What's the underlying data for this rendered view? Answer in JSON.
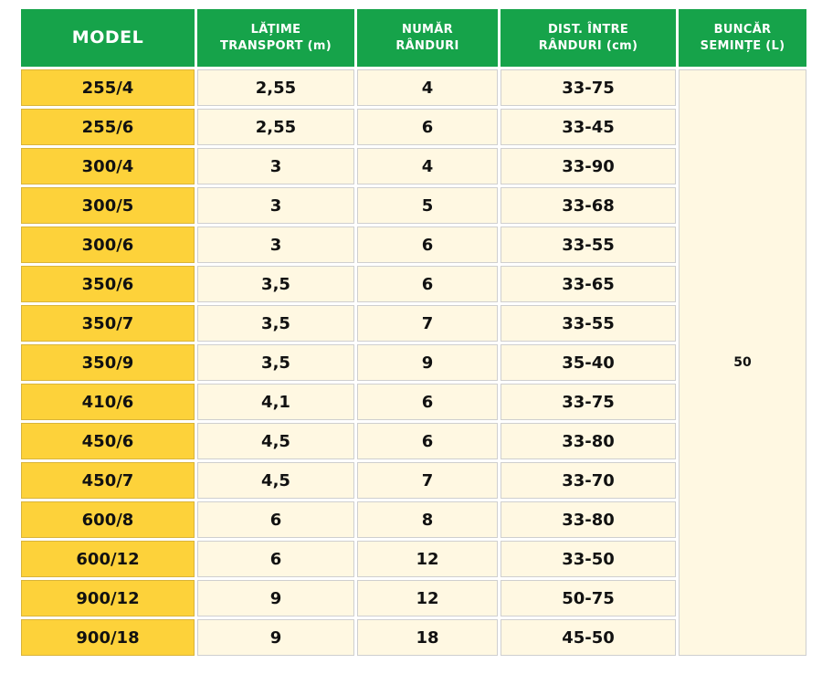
{
  "table": {
    "headers": {
      "model": "MODEL",
      "width": "LĂȚIME\nTRANSPORT (m)",
      "rows_count": "NUMĂR\nRÂNDURI",
      "spacing": "DIST. ÎNTRE\nRÂNDURI (cm)",
      "hopper": "BUNCĂR\nSEMINȚE (L)"
    },
    "hopper_value": "50",
    "rows": [
      {
        "model": "255/4",
        "width": "2,55",
        "rows_count": "4",
        "spacing": "33-75"
      },
      {
        "model": "255/6",
        "width": "2,55",
        "rows_count": "6",
        "spacing": "33-45"
      },
      {
        "model": "300/4",
        "width": "3",
        "rows_count": "4",
        "spacing": "33-90"
      },
      {
        "model": "300/5",
        "width": "3",
        "rows_count": "5",
        "spacing": "33-68"
      },
      {
        "model": "300/6",
        "width": "3",
        "rows_count": "6",
        "spacing": "33-55"
      },
      {
        "model": "350/6",
        "width": "3,5",
        "rows_count": "6",
        "spacing": "33-65"
      },
      {
        "model": "350/7",
        "width": "3,5",
        "rows_count": "7",
        "spacing": "33-55"
      },
      {
        "model": "350/9",
        "width": "3,5",
        "rows_count": "9",
        "spacing": "35-40"
      },
      {
        "model": "410/6",
        "width": "4,1",
        "rows_count": "6",
        "spacing": "33-75"
      },
      {
        "model": "450/6",
        "width": "4,5",
        "rows_count": "6",
        "spacing": "33-80"
      },
      {
        "model": "450/7",
        "width": "4,5",
        "rows_count": "7",
        "spacing": "33-70"
      },
      {
        "model": "600/8",
        "width": "6",
        "rows_count": "8",
        "spacing": "33-80"
      },
      {
        "model": "600/12",
        "width": "6",
        "rows_count": "12",
        "spacing": "33-50"
      },
      {
        "model": "900/12",
        "width": "9",
        "rows_count": "12",
        "spacing": "50-75"
      },
      {
        "model": "900/18",
        "width": "9",
        "rows_count": "18",
        "spacing": "45-50"
      }
    ]
  },
  "colors": {
    "header_green": "#16a34a",
    "model_yellow": "#fdd23a",
    "cell_cream": "#fff8e2"
  }
}
